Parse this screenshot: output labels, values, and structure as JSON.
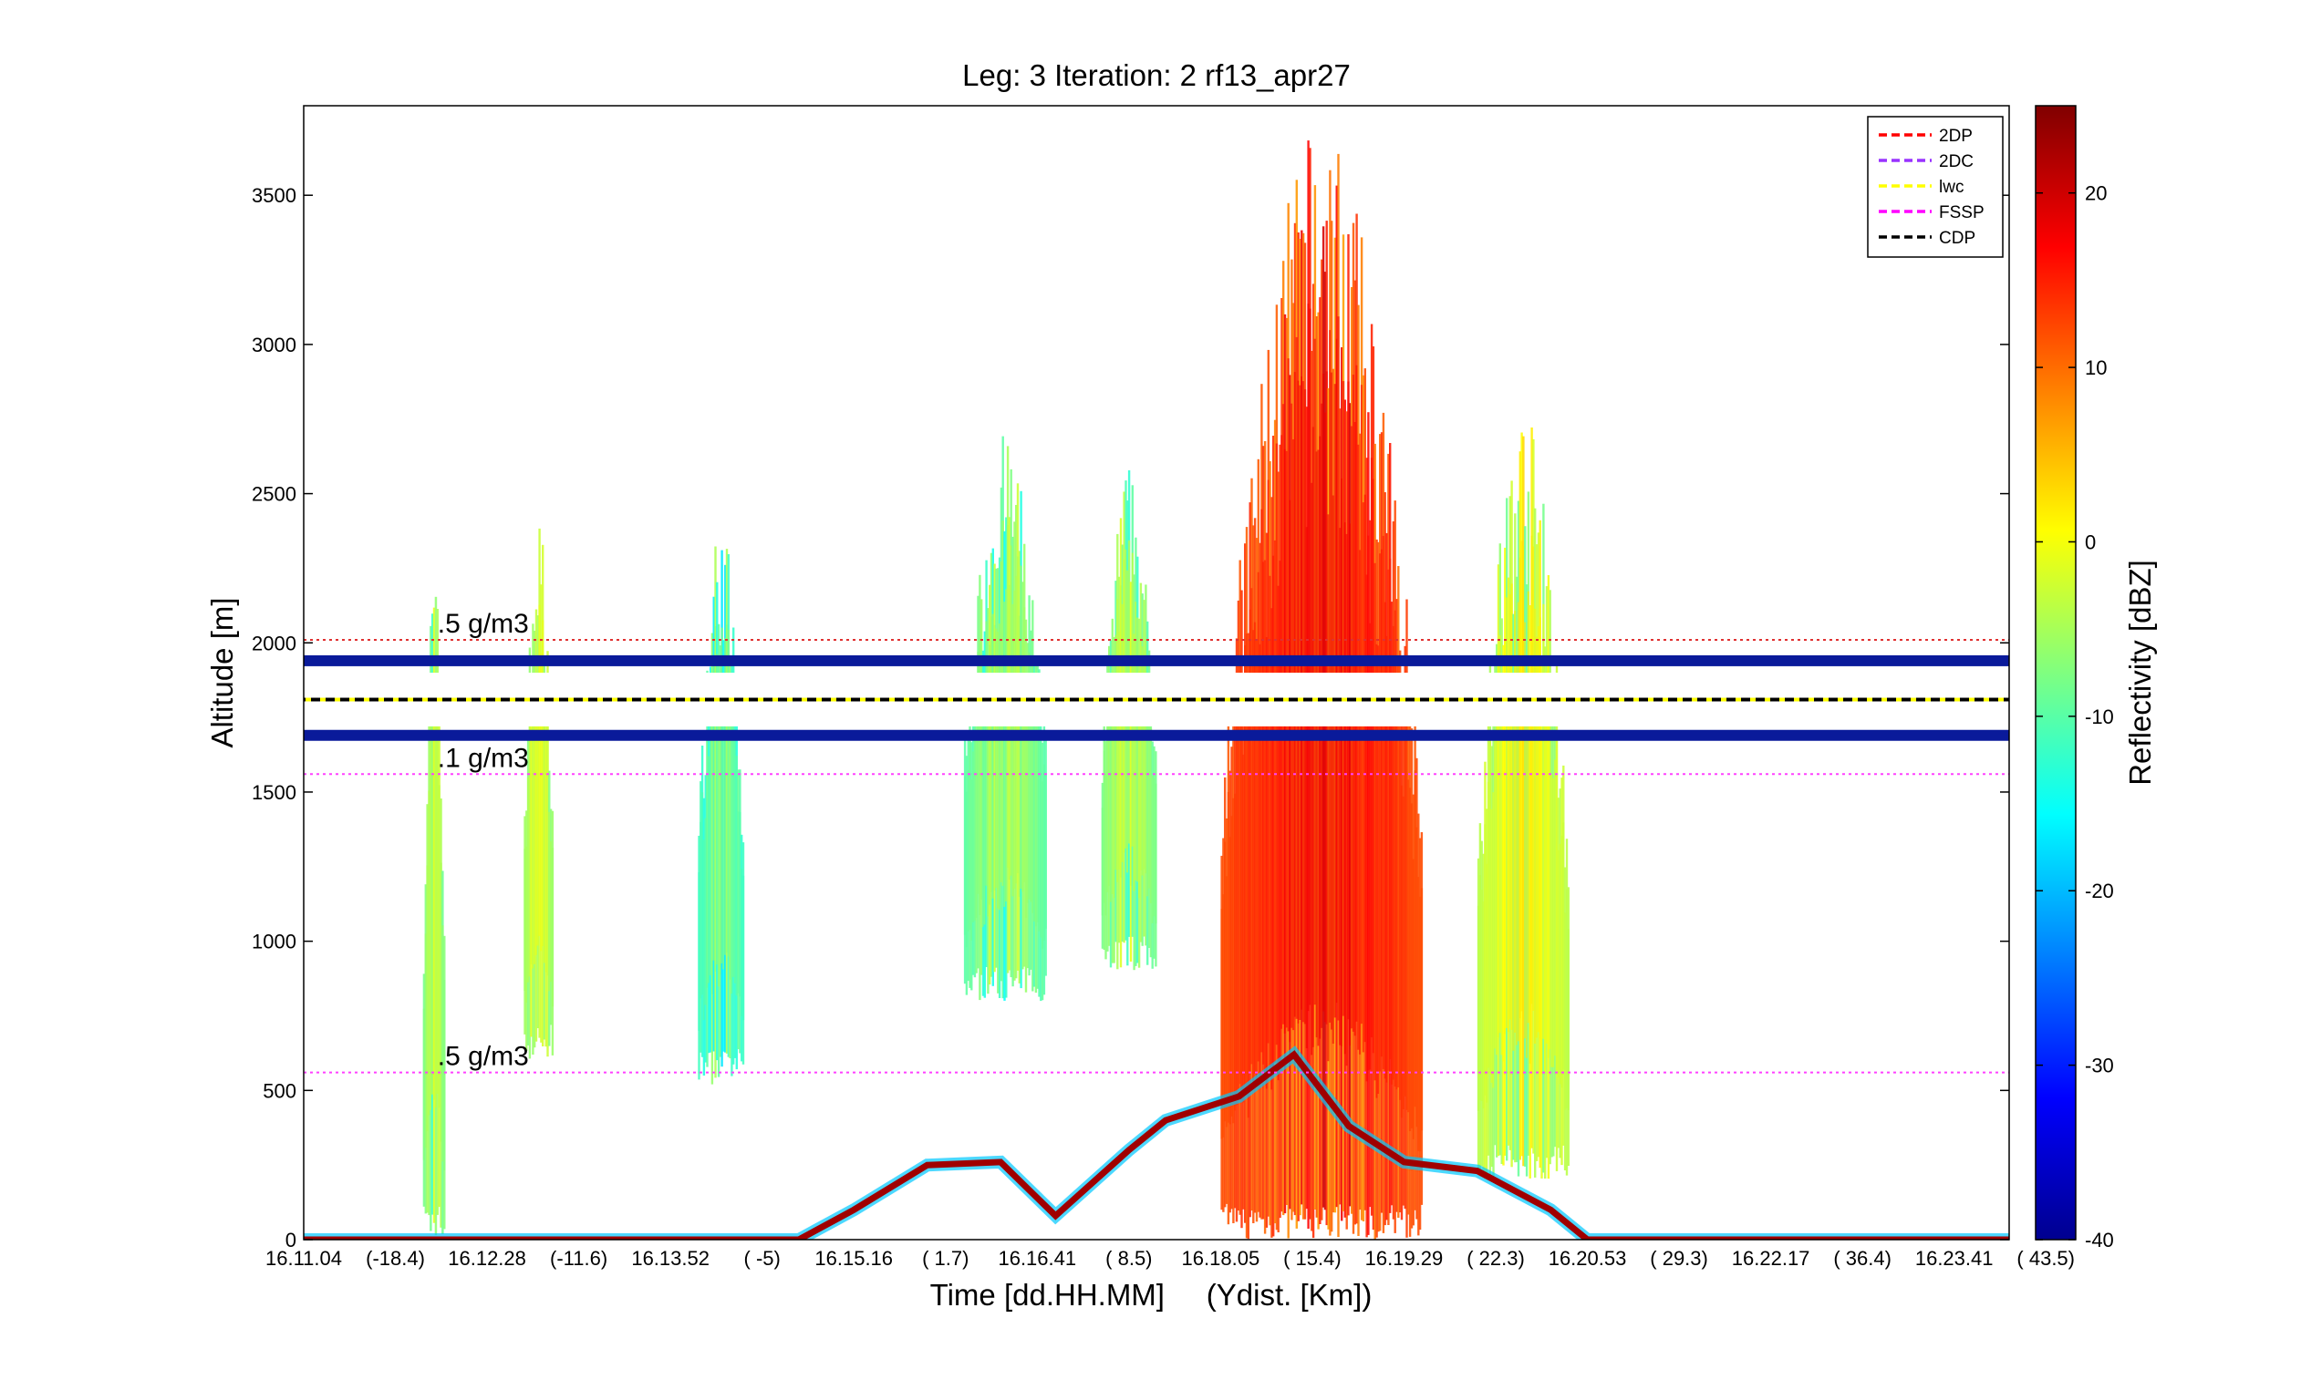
{
  "chart_data": {
    "type": "heatmap",
    "title": "Leg: 3  Iteration: 2  rf13_apr27",
    "xlabel": "Time [dd.HH.MM]     (Ydist. [Km])",
    "ylabel": "Altitude [m]",
    "colorbar_label": "Reflectivity [dBZ]",
    "ylim": [
      0,
      3800
    ],
    "clim": [
      -40,
      25
    ],
    "grid": false,
    "legend_position": "top-right",
    "yticks": [
      0,
      500,
      1000,
      1500,
      2000,
      2500,
      3000,
      3500
    ],
    "cticks": [
      -40,
      -30,
      -20,
      -10,
      0,
      10,
      20
    ],
    "xticks": [
      {
        "pos": 0.0,
        "label": "16.11.04"
      },
      {
        "pos": 0.5,
        "label": "(-18.4)"
      },
      {
        "pos": 1.0,
        "label": "16.12.28"
      },
      {
        "pos": 1.5,
        "label": "(-11.6)"
      },
      {
        "pos": 2.0,
        "label": "16.13.52"
      },
      {
        "pos": 2.5,
        "label": "(    -5)"
      },
      {
        "pos": 3.0,
        "label": "16.15.16"
      },
      {
        "pos": 3.5,
        "label": "(   1.7)"
      },
      {
        "pos": 4.0,
        "label": "16.16.41"
      },
      {
        "pos": 4.5,
        "label": "(   8.5)"
      },
      {
        "pos": 5.0,
        "label": "16.18.05"
      },
      {
        "pos": 5.5,
        "label": "(  15.4)"
      },
      {
        "pos": 6.0,
        "label": "16.19.29"
      },
      {
        "pos": 6.5,
        "label": "(  22.3)"
      },
      {
        "pos": 7.0,
        "label": "16.20.53"
      },
      {
        "pos": 7.5,
        "label": "(  29.3)"
      },
      {
        "pos": 8.0,
        "label": "16.22.17"
      },
      {
        "pos": 8.5,
        "label": "(  36.4)"
      },
      {
        "pos": 9.0,
        "label": "16.23.41"
      },
      {
        "pos": 9.5,
        "label": "(  43.5)"
      }
    ],
    "xlim": [
      0,
      9.3
    ],
    "reference_lines": [
      {
        "label": ".5 g/m3",
        "altitude": 2010,
        "color": "#e03030"
      },
      {
        "label": ".1 g/m3",
        "altitude": 1560,
        "color": "#ff40ff"
      },
      {
        "label": ".5 g/m3",
        "altitude": 560,
        "color": "#ff40ff"
      }
    ],
    "series": [
      {
        "name": "2DP",
        "color": "#ff0000",
        "dash": true
      },
      {
        "name": "2DC",
        "color": "#9933ff",
        "dash": true
      },
      {
        "name": "lwc",
        "color": "#ffff00",
        "dash": true
      },
      {
        "name": "FSSP",
        "color": "#ff00ff",
        "dash": true
      },
      {
        "name": "CDP",
        "color": "#000000",
        "dash": true
      }
    ],
    "flight_altitude": 1810,
    "radar_dead_zone": [
      1720,
      1900
    ],
    "cloud_cells": [
      {
        "x": 0.65,
        "w": 0.12,
        "top": 2300,
        "bottom": 0,
        "dbz": -8
      },
      {
        "x": 1.2,
        "w": 0.16,
        "top": 2450,
        "bottom": 600,
        "dbz": -6
      },
      {
        "x": 2.15,
        "w": 0.25,
        "top": 2450,
        "bottom": 520,
        "dbz": -12
      },
      {
        "x": 3.6,
        "w": 0.45,
        "top": 2700,
        "bottom": 800,
        "dbz": -10
      },
      {
        "x": 4.35,
        "w": 0.3,
        "top": 2600,
        "bottom": 900,
        "dbz": -8
      },
      {
        "x": 5.0,
        "w": 1.1,
        "top": 3750,
        "bottom": 0,
        "dbz": 12
      },
      {
        "x": 6.4,
        "w": 0.5,
        "top": 2800,
        "bottom": 200,
        "dbz": -4
      }
    ],
    "terrain": [
      {
        "x": 0.0,
        "alt": 0
      },
      {
        "x": 2.7,
        "alt": 0
      },
      {
        "x": 3.0,
        "alt": 100
      },
      {
        "x": 3.4,
        "alt": 250
      },
      {
        "x": 3.8,
        "alt": 260
      },
      {
        "x": 4.1,
        "alt": 80
      },
      {
        "x": 4.5,
        "alt": 300
      },
      {
        "x": 4.7,
        "alt": 400
      },
      {
        "x": 5.1,
        "alt": 480
      },
      {
        "x": 5.4,
        "alt": 620
      },
      {
        "x": 5.7,
        "alt": 380
      },
      {
        "x": 6.0,
        "alt": 260
      },
      {
        "x": 6.4,
        "alt": 230
      },
      {
        "x": 6.8,
        "alt": 100
      },
      {
        "x": 7.0,
        "alt": 0
      },
      {
        "x": 9.3,
        "alt": 0
      }
    ]
  }
}
